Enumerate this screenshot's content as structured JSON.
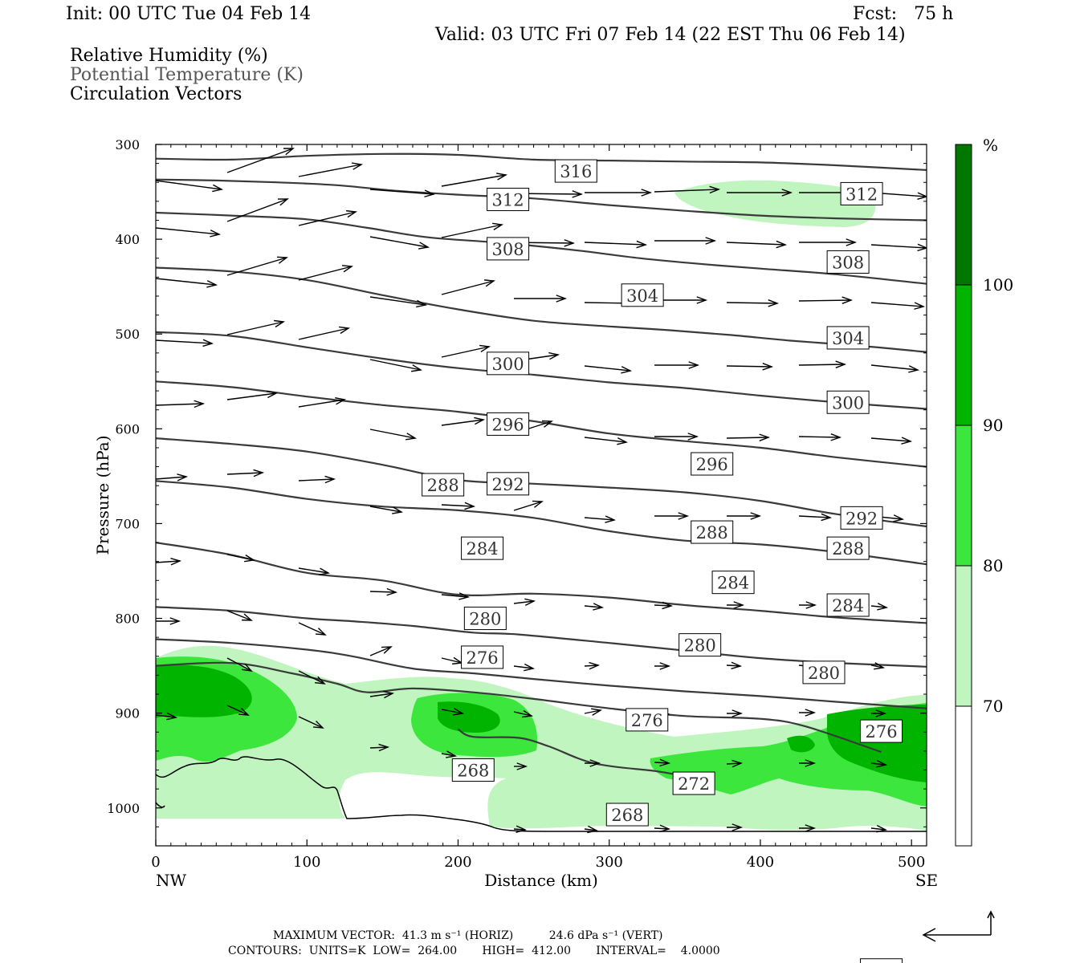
{
  "header": {
    "init": "Init: 00 UTC Tue 04 Feb 14",
    "fcst": "Fcst:   75 h",
    "valid": "Valid: 03 UTC Fri 07 Feb 14 (22 EST Thu 06 Feb 14)",
    "field1": "Relative Humidity (%)",
    "field2": "Potential Temperature (K)",
    "field3": "Circulation Vectors"
  },
  "footer": {
    "max_vector": "MAXIMUM VECTOR:  41.3 m s⁻¹ (HORIZ)          24.6 dPa s⁻¹ (VERT)",
    "contours": "CONTOURS:  UNITS=K  LOW=  264.00       HIGH=  412.00       INTERVAL=    4.0000"
  },
  "colors": {
    "rh70": "#c0f5c0",
    "rh80": "#3ce63c",
    "rh90": "#00b400",
    "rh100": "#007800",
    "theta_line": "#3a3a3a",
    "vector": "#000000"
  },
  "chart_data": {
    "type": "contour",
    "xlabel": "Distance (km)",
    "ylabel": "Pressure (hPa)",
    "xlim": [
      0,
      510
    ],
    "ylim": [
      1040,
      300
    ],
    "x_ticks": [
      0,
      100,
      200,
      300,
      400,
      500
    ],
    "y_ticks": [
      300,
      400,
      500,
      600,
      700,
      800,
      900,
      1000
    ],
    "x_end_labels": [
      "NW",
      "SE"
    ],
    "colorbar": {
      "unit": "%",
      "levels": [
        70,
        80,
        90,
        100
      ]
    },
    "theta_contours": [
      {
        "level": 316,
        "points": [
          [
            0,
            315
          ],
          [
            50,
            316
          ],
          [
            100,
            312
          ],
          [
            150,
            310
          ],
          [
            200,
            311
          ],
          [
            250,
            316
          ],
          [
            300,
            317
          ],
          [
            350,
            318
          ],
          [
            400,
            319
          ],
          [
            450,
            322
          ],
          [
            510,
            327
          ]
        ],
        "labels": [
          [
            278,
            328
          ]
        ]
      },
      {
        "level": 312,
        "points": [
          [
            0,
            337
          ],
          [
            40,
            338
          ],
          [
            80,
            340
          ],
          [
            120,
            343
          ],
          [
            160,
            349
          ],
          [
            200,
            353
          ],
          [
            250,
            357
          ],
          [
            300,
            364
          ],
          [
            350,
            370
          ],
          [
            400,
            375
          ],
          [
            450,
            378
          ],
          [
            510,
            380
          ]
        ],
        "labels": [
          [
            233,
            358
          ],
          [
            467,
            352
          ]
        ]
      },
      {
        "level": 308,
        "points": [
          [
            0,
            372
          ],
          [
            50,
            375
          ],
          [
            100,
            379
          ],
          [
            140,
            388
          ],
          [
            180,
            398
          ],
          [
            230,
            404
          ],
          [
            280,
            412
          ],
          [
            320,
            420
          ],
          [
            360,
            426
          ],
          [
            400,
            431
          ],
          [
            450,
            437
          ],
          [
            510,
            447
          ]
        ],
        "labels": [
          [
            233,
            410
          ],
          [
            458,
            424
          ]
        ]
      },
      {
        "level": 304,
        "points": [
          [
            0,
            430
          ],
          [
            50,
            434
          ],
          [
            100,
            443
          ],
          [
            150,
            459
          ],
          [
            200,
            474
          ],
          [
            250,
            486
          ],
          [
            300,
            492
          ],
          [
            340,
            496
          ],
          [
            380,
            501
          ],
          [
            420,
            507
          ],
          [
            470,
            513
          ],
          [
            510,
            519
          ]
        ],
        "labels": [
          [
            322,
            459
          ],
          [
            458,
            504
          ]
        ]
      },
      {
        "level": 300,
        "points": [
          [
            0,
            498
          ],
          [
            50,
            502
          ],
          [
            100,
            514
          ],
          [
            150,
            526
          ],
          [
            200,
            536
          ],
          [
            250,
            543
          ],
          [
            300,
            551
          ],
          [
            350,
            557
          ],
          [
            400,
            565
          ],
          [
            450,
            572
          ],
          [
            510,
            579
          ]
        ],
        "labels": [
          [
            233,
            531
          ],
          [
            458,
            572
          ]
        ]
      },
      {
        "level": 296,
        "points": [
          [
            0,
            550
          ],
          [
            50,
            556
          ],
          [
            100,
            566
          ],
          [
            150,
            575
          ],
          [
            200,
            582
          ],
          [
            250,
            592
          ],
          [
            300,
            605
          ],
          [
            350,
            613
          ],
          [
            400,
            620
          ],
          [
            450,
            630
          ],
          [
            510,
            640
          ]
        ],
        "labels": [
          [
            233,
            595
          ],
          [
            368,
            637
          ]
        ]
      },
      {
        "level": 292,
        "points": [
          [
            0,
            610
          ],
          [
            50,
            616
          ],
          [
            100,
            624
          ],
          [
            150,
            638
          ],
          [
            200,
            654
          ],
          [
            250,
            658
          ],
          [
            300,
            662
          ],
          [
            350,
            667
          ],
          [
            400,
            676
          ],
          [
            450,
            690
          ],
          [
            510,
            703
          ]
        ],
        "labels": [
          [
            233,
            658
          ],
          [
            467,
            694
          ]
        ]
      },
      {
        "level": 288,
        "points": [
          [
            0,
            655
          ],
          [
            50,
            662
          ],
          [
            100,
            674
          ],
          [
            150,
            682
          ],
          [
            200,
            686
          ],
          [
            250,
            694
          ],
          [
            300,
            708
          ],
          [
            350,
            718
          ],
          [
            400,
            722
          ],
          [
            450,
            730
          ],
          [
            510,
            743
          ]
        ],
        "labels": [
          [
            190,
            659
          ],
          [
            368,
            709
          ],
          [
            458,
            726
          ]
        ]
      },
      {
        "level": 284,
        "points": [
          [
            0,
            720
          ],
          [
            50,
            733
          ],
          [
            100,
            752
          ],
          [
            150,
            760
          ],
          [
            200,
            775
          ],
          [
            250,
            774
          ],
          [
            300,
            778
          ],
          [
            350,
            786
          ],
          [
            400,
            792
          ],
          [
            450,
            799
          ],
          [
            510,
            805
          ]
        ],
        "labels": [
          [
            216,
            726
          ],
          [
            382,
            762
          ],
          [
            458,
            786
          ]
        ]
      },
      {
        "level": 280,
        "points": [
          [
            0,
            788
          ],
          [
            50,
            792
          ],
          [
            100,
            800
          ],
          [
            130,
            803
          ],
          [
            170,
            808
          ],
          [
            210,
            815
          ],
          [
            240,
            817
          ],
          [
            300,
            826
          ],
          [
            350,
            834
          ],
          [
            400,
            842
          ],
          [
            450,
            847
          ],
          [
            510,
            851
          ]
        ],
        "labels": [
          [
            218,
            800
          ],
          [
            360,
            828
          ],
          [
            442,
            857
          ]
        ]
      },
      {
        "level": 276,
        "points": [
          [
            0,
            822
          ],
          [
            50,
            826
          ],
          [
            100,
            833
          ],
          [
            130,
            840
          ],
          [
            170,
            853
          ],
          [
            210,
            858
          ],
          [
            250,
            864
          ],
          [
            300,
            871
          ],
          [
            350,
            877
          ],
          [
            400,
            882
          ],
          [
            450,
            888
          ],
          [
            510,
            895
          ]
        ],
        "labels": [
          [
            216,
            841
          ],
          [
            325,
            907
          ],
          [
            480,
            919
          ]
        ]
      },
      {
        "level": 272,
        "points": [
          [
            0,
            850
          ],
          [
            50,
            847
          ],
          [
            90,
            858
          ],
          [
            120,
            869
          ],
          [
            140,
            878
          ],
          [
            170,
            874
          ],
          [
            210,
            878
          ],
          [
            250,
            885
          ],
          [
            300,
            895
          ],
          [
            350,
            903
          ],
          [
            400,
            906
          ],
          [
            430,
            914
          ],
          [
            480,
            941
          ]
        ],
        "labels": [
          [
            356,
            974
          ],
          [
            480,
            1171
          ]
        ]
      },
      {
        "level": 268,
        "points": [
          [
            200,
            917
          ],
          [
            210,
            925
          ],
          [
            240,
            926
          ],
          [
            260,
            935
          ],
          [
            290,
            953
          ],
          [
            330,
            961
          ],
          [
            345,
            965
          ]
        ],
        "labels": [
          [
            210,
            960
          ],
          [
            312,
            1007
          ]
        ]
      }
    ],
    "rh_regions": [
      {
        "level": 70,
        "desc": "upper layer near 340-380 hPa, 340-475 km"
      },
      {
        "level": 70,
        "desc": "lower moist layer 840-1030 hPa"
      },
      {
        "level": 80,
        "desc": "boundary layer maxima"
      },
      {
        "level": 90,
        "desc": "boundary layer maxima"
      }
    ],
    "grid": false
  }
}
